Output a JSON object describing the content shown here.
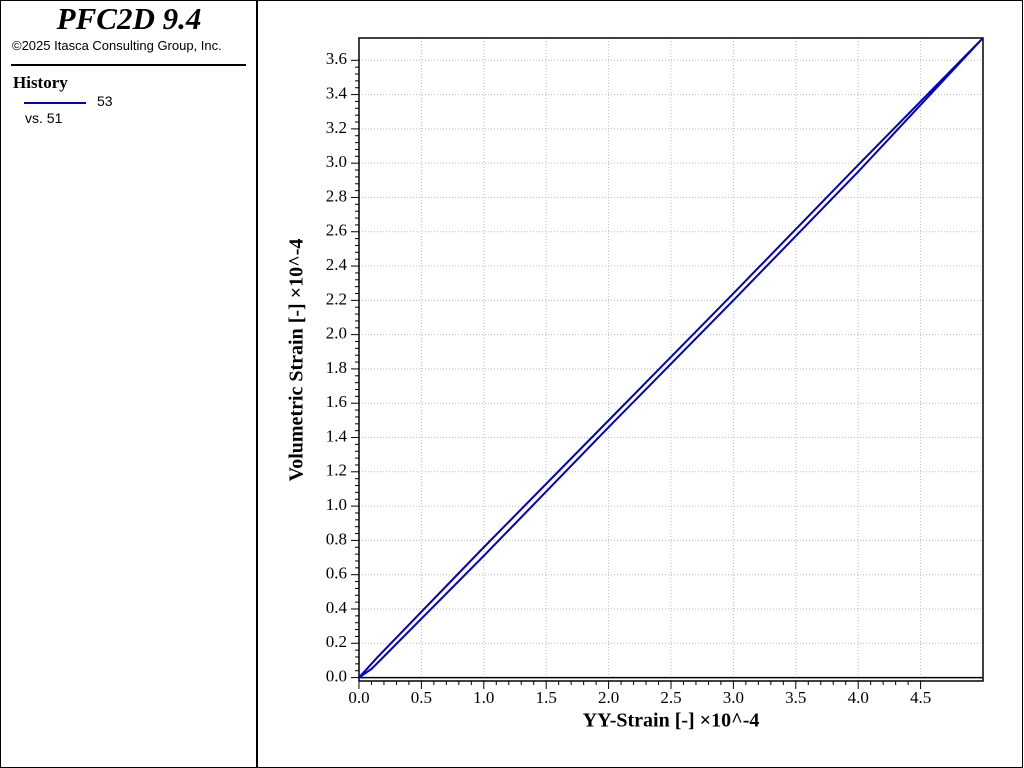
{
  "header": {
    "title": "PFC2D 9.4",
    "copyright": "©2025 Itasca Consulting Group, Inc."
  },
  "legend": {
    "heading": "History",
    "vs": "vs. 51"
  },
  "chart_data": {
    "type": "line",
    "x_label": "YY-Strain [-] ×10^-4",
    "y_label": "Volumetric Strain [-] ×10^-4",
    "xlim": [
      0,
      5.0
    ],
    "ylim": [
      -0.02,
      3.73
    ],
    "xticks": [
      {
        "value": 0,
        "label": "0.0"
      },
      {
        "value": 0.5,
        "label": "0.5"
      },
      {
        "value": 1,
        "label": "1.0"
      },
      {
        "value": 1.5,
        "label": "1.5"
      },
      {
        "value": 2,
        "label": "2.0"
      },
      {
        "value": 2.5,
        "label": "2.5"
      },
      {
        "value": 3,
        "label": "3.0"
      },
      {
        "value": 3.5,
        "label": "3.5"
      },
      {
        "value": 4,
        "label": "4.0"
      },
      {
        "value": 4.5,
        "label": "4.5"
      }
    ],
    "yticks": [
      {
        "value": 0,
        "label": "0.0"
      },
      0.2,
      0.4,
      0.6,
      0.8,
      {
        "value": 1,
        "label": "1.0"
      },
      1.2,
      1.4,
      1.6,
      1.8,
      {
        "value": 2,
        "label": "2.0"
      },
      2.2,
      2.4,
      2.6,
      2.8,
      {
        "value": 3,
        "label": "3.0"
      },
      3.2,
      3.4,
      3.6
    ],
    "grid": true,
    "series": [
      {
        "name": "53",
        "color": "#0000c8",
        "x": [
          0,
          0.15,
          1,
          2,
          3,
          4,
          5,
          4,
          3,
          2,
          1,
          0.1,
          0
        ],
        "values": [
          0,
          0.12,
          0.76,
          1.5,
          2.24,
          2.99,
          3.73,
          2.95,
          2.2,
          1.46,
          0.71,
          0.05,
          0
        ]
      }
    ]
  }
}
